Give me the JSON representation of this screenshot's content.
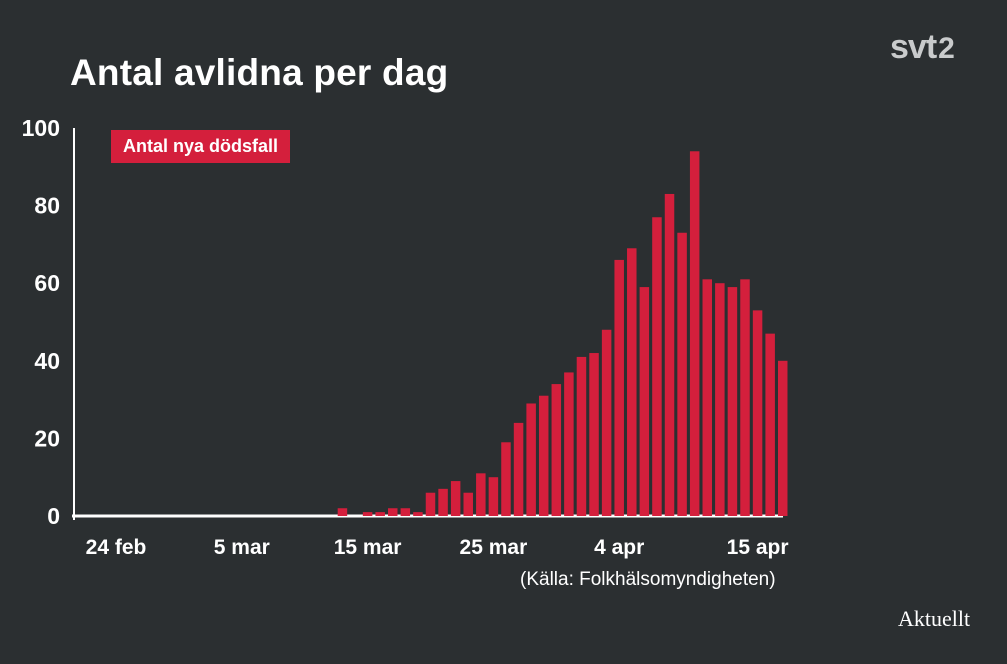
{
  "header": {
    "title": "Antal avlidna per dag"
  },
  "branding": {
    "channel": "svt",
    "channel_number": "2",
    "program": "Aktuellt"
  },
  "source_note": "(Källa: Folkhälsomyndigheten)",
  "colors": {
    "background": "#2b2f31",
    "bar": "#d41f3c",
    "axis": "#ffffff"
  },
  "chart_data": {
    "type": "bar",
    "title": "Antal avlidna per dag",
    "xlabel": "",
    "ylabel": "",
    "ylim": [
      0,
      100
    ],
    "yticks": [
      0,
      20,
      40,
      60,
      80,
      100
    ],
    "grid": false,
    "legend_position": "top-left",
    "xtick_labels": [
      {
        "label": "24 feb",
        "index": 0
      },
      {
        "label": "5 mar",
        "index": 10
      },
      {
        "label": "15 mar",
        "index": 20
      },
      {
        "label": "25 mar",
        "index": 30
      },
      {
        "label": "4 apr",
        "index": 40
      },
      {
        "label": "15 apr",
        "index": 51
      }
    ],
    "series": [
      {
        "name": "Antal nya dödsfall",
        "values": [
          0,
          0,
          0,
          0,
          0,
          0,
          0,
          0,
          0,
          0,
          0,
          0,
          0,
          0,
          0,
          0,
          0,
          0,
          2,
          0,
          1,
          1,
          2,
          2,
          1,
          6,
          7,
          9,
          6,
          11,
          10,
          19,
          24,
          29,
          31,
          34,
          37,
          41,
          42,
          48,
          66,
          69,
          59,
          77,
          83,
          73,
          94,
          61,
          60,
          59,
          61,
          53,
          47,
          40
        ]
      }
    ]
  }
}
